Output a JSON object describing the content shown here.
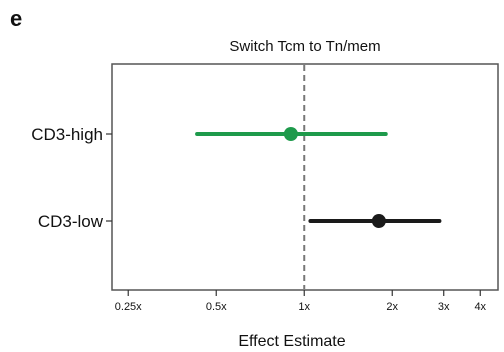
{
  "panel_label": "e",
  "chart_data": {
    "type": "forest",
    "title": "Switch Tcm to Tn/mem",
    "xlabel": "Effect Estimate",
    "x_scale": "log",
    "xlim": [
      0.22,
      4.6
    ],
    "xticks": [
      {
        "value": 0.25,
        "label": "0.25x"
      },
      {
        "value": 0.5,
        "label": "0.5x"
      },
      {
        "value": 1,
        "label": "1x"
      },
      {
        "value": 2,
        "label": "2x"
      },
      {
        "value": 3,
        "label": "3x"
      },
      {
        "value": 4,
        "label": "4x"
      }
    ],
    "reference_line": 1,
    "categories": [
      "CD3-high",
      "CD3-low"
    ],
    "estimates": [
      {
        "label": "CD3-high",
        "estimate": 0.9,
        "lower": 0.43,
        "upper": 1.9,
        "color": "#1e9a4b"
      },
      {
        "label": "CD3-low",
        "estimate": 1.8,
        "lower": 1.05,
        "upper": 2.9,
        "color": "#1a1a1a"
      }
    ]
  }
}
